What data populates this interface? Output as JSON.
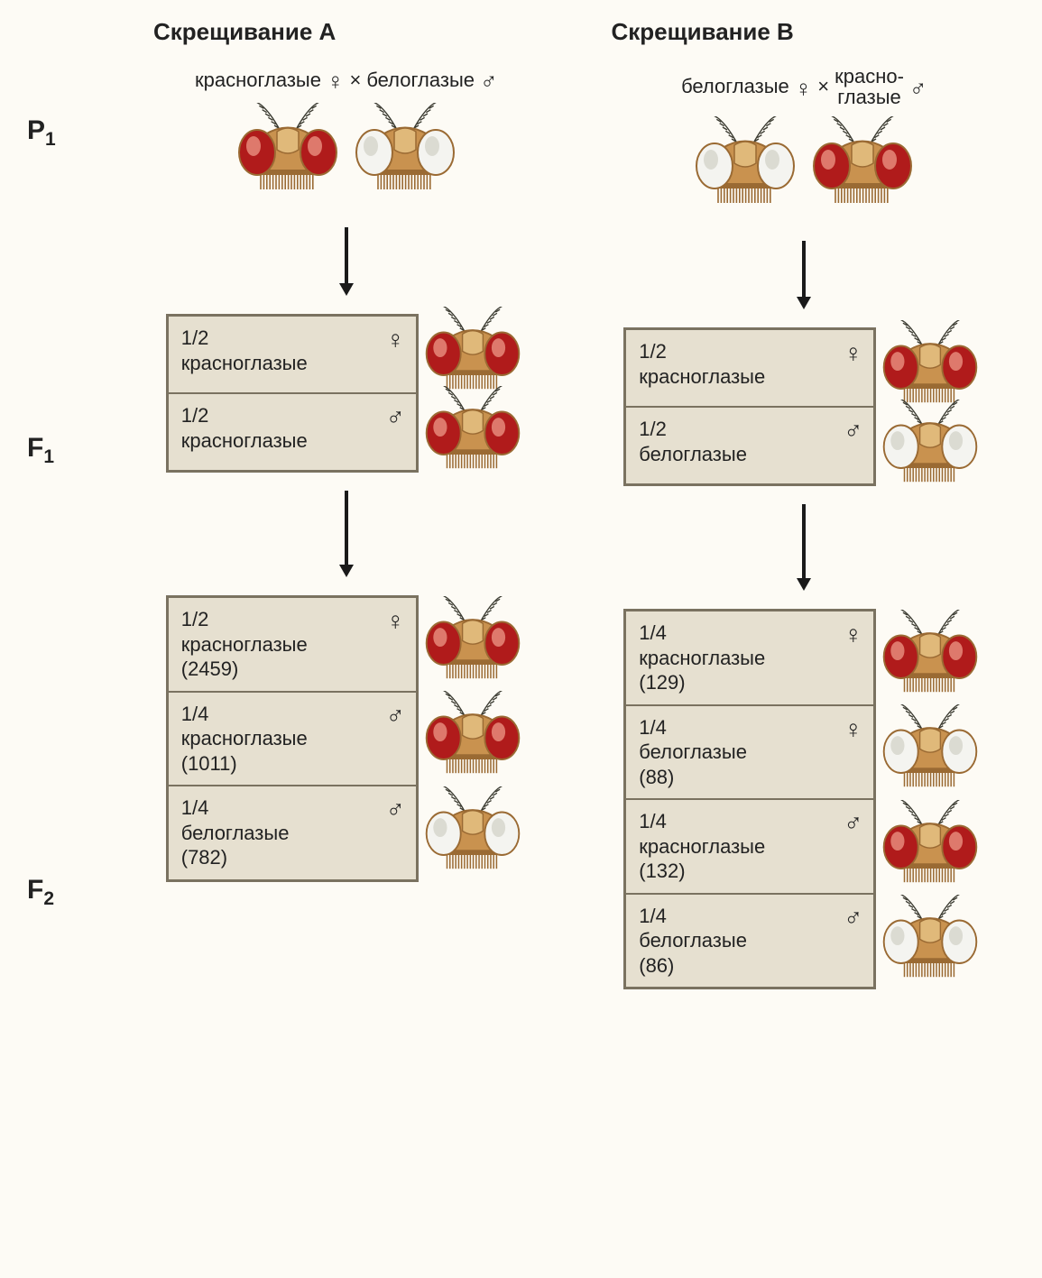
{
  "colors": {
    "background": "#fdfbf5",
    "box_bg": "#e6e0d0",
    "box_border": "#7a7260",
    "text": "#222222",
    "fly_body": "#c9924f",
    "fly_body_dark": "#9a6a33",
    "fly_body_light": "#e0b97a",
    "eye_red": "#b01b1b",
    "eye_red_highlight": "#e68a7a",
    "eye_white": "#f4f4f0",
    "eye_white_shadow": "#d6d6cc",
    "antenna": "#3a3a30",
    "arrow": "#1a1a1a"
  },
  "fonts": {
    "title_size_pt": 20,
    "label_size_pt": 17,
    "gen_size_pt": 23
  },
  "generations": {
    "P1": "P",
    "P1_sub": "1",
    "F1": "F",
    "F1_sub": "1",
    "F2": "F",
    "F2_sub": "2"
  },
  "crossA": {
    "title": "Скрещивание A",
    "p1": {
      "female_label": "красноглазые",
      "female_eye": "red",
      "male_label": "белоглазые",
      "male_eye": "white",
      "cross_symbol": "×"
    },
    "f1": [
      {
        "fraction": "1/2",
        "label": "красноглазые",
        "sex": "female",
        "eye": "red"
      },
      {
        "fraction": "1/2",
        "label": "красноглазые",
        "sex": "male",
        "eye": "red"
      }
    ],
    "f2": [
      {
        "fraction": "1/2",
        "label": "красноглазые",
        "count": "2459",
        "sex": "female",
        "eye": "red"
      },
      {
        "fraction": "1/4",
        "label": "красноглазые",
        "count": "1011",
        "sex": "male",
        "eye": "red"
      },
      {
        "fraction": "1/4",
        "label": "белоглазые",
        "count": "782",
        "sex": "male",
        "eye": "white"
      }
    ]
  },
  "crossB": {
    "title": "Скрещивание B",
    "p1": {
      "female_label": "белоглазые",
      "female_eye": "white",
      "male_label_top": "красно-",
      "male_label_bottom": "глазые",
      "male_eye": "red",
      "cross_symbol": "×"
    },
    "f1": [
      {
        "fraction": "1/2",
        "label": "красноглазые",
        "sex": "female",
        "eye": "red"
      },
      {
        "fraction": "1/2",
        "label": "белоглазые",
        "sex": "male",
        "eye": "white"
      }
    ],
    "f2": [
      {
        "fraction": "1/4",
        "label": "красноглазые",
        "count": "129",
        "sex": "female",
        "eye": "red"
      },
      {
        "fraction": "1/4",
        "label": "белоглазые",
        "count": "88",
        "sex": "female",
        "eye": "white"
      },
      {
        "fraction": "1/4",
        "label": "красноглазые",
        "count": "132",
        "sex": "male",
        "eye": "red"
      },
      {
        "fraction": "1/4",
        "label": "белоглазые",
        "count": "86",
        "sex": "male",
        "eye": "white"
      }
    ]
  },
  "symbols": {
    "female": "♀",
    "male": "♂"
  }
}
